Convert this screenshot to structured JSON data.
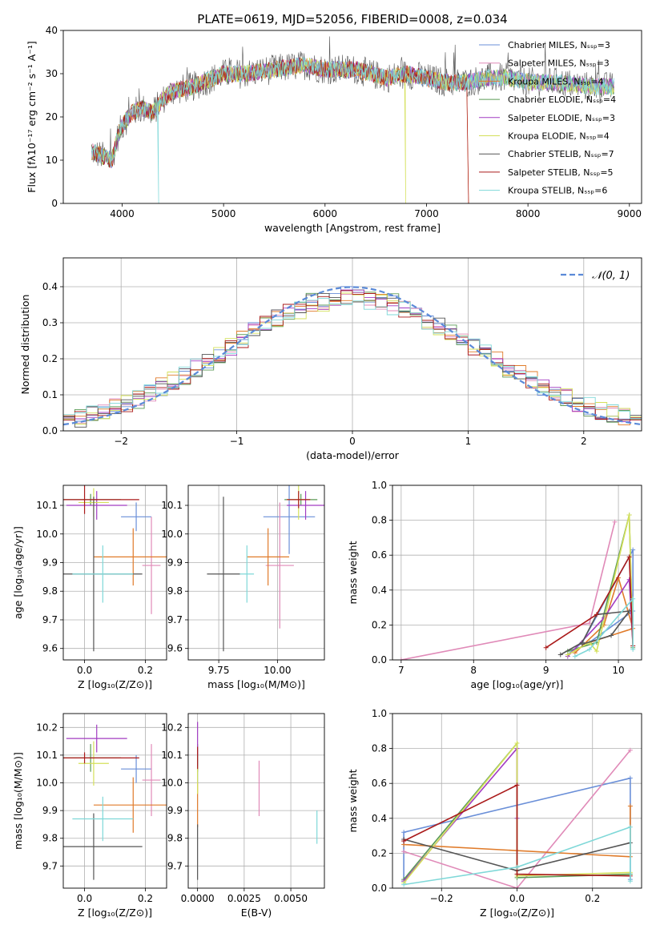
{
  "colors": [
    "#6a8fd8",
    "#e08ab8",
    "#e07b2a",
    "#5a9a55",
    "#a23cc2",
    "#d4e05a",
    "#555555",
    "#aa1a1a",
    "#7fd8d8"
  ],
  "chart_data": [
    {
      "id": "spectrum",
      "type": "line",
      "title": "PLATE=0619, MJD=52056, FIBERID=0008, z=0.034",
      "xlabel": "wavelength [Angstrom, rest frame]",
      "ylabel": "Flux [fλ10⁻¹⁷ erg cm⁻² s⁻¹ A⁻¹]",
      "xlim": [
        3420,
        9120
      ],
      "ylim": [
        0,
        40
      ],
      "xticks": [
        4000,
        5000,
        6000,
        7000,
        8000,
        9000
      ],
      "yticks": [
        0,
        10,
        20,
        30,
        40
      ],
      "legend_position": "top-right",
      "legend": [
        "Chabrier MILES, Nₛₛₚ=3",
        "Salpeter MILES, Nₛₛₚ=3",
        "Kroupa MILES, Nₛₛₚ=4",
        "Chabrier ELODIE, Nₛₛₚ=4",
        "Salpeter ELODIE, Nₛₛₚ=3",
        "Kroupa ELODIE, Nₛₛₚ=4",
        "Chabrier STELIB, Nₛₛₚ=7",
        "Salpeter STELIB, Nₛₛₚ=5",
        "Kroupa STELIB, Nₛₛₚ=6"
      ],
      "continuum": [
        [
          3700,
          12
        ],
        [
          3800,
          11
        ],
        [
          3900,
          10
        ],
        [
          3950,
          15
        ],
        [
          4000,
          18
        ],
        [
          4100,
          21
        ],
        [
          4200,
          22
        ],
        [
          4300,
          21
        ],
        [
          4400,
          24
        ],
        [
          4500,
          26
        ],
        [
          4700,
          27
        ],
        [
          4900,
          29
        ],
        [
          5000,
          30
        ],
        [
          5200,
          30
        ],
        [
          5500,
          31
        ],
        [
          5800,
          32
        ],
        [
          6000,
          31
        ],
        [
          6300,
          31
        ],
        [
          6600,
          29
        ],
        [
          6800,
          30
        ],
        [
          7000,
          29
        ],
        [
          7200,
          28
        ],
        [
          7400,
          28
        ],
        [
          7600,
          29
        ],
        [
          7800,
          29
        ],
        [
          8000,
          28
        ],
        [
          8300,
          28
        ],
        [
          8600,
          27
        ],
        [
          8850,
          27
        ]
      ]
    },
    {
      "id": "residuals",
      "type": "histogram",
      "xlabel": "(data-model)/error",
      "ylabel": "Normed distribution",
      "xlim": [
        -2.5,
        2.5
      ],
      "ylim": [
        0,
        0.48
      ],
      "xticks": [
        -2,
        -1,
        0,
        1,
        2
      ],
      "yticks": [
        0.0,
        0.1,
        0.2,
        0.3,
        0.4
      ],
      "legend": "𝒩(0, 1)",
      "legend_position": "top-right"
    },
    {
      "id": "age-vs-Z",
      "type": "errorbar",
      "xlabel": "Z [log₁₀(Z/Z⊙)]",
      "ylabel": "age  [log₁₀(age/yr)]",
      "xlim": [
        -0.07,
        0.27
      ],
      "ylim": [
        9.56,
        10.17
      ],
      "xticks": [
        0.0,
        0.2
      ],
      "yticks": [
        9.6,
        9.7,
        9.8,
        9.9,
        10.0,
        10.1
      ],
      "points": [
        [
          0.17,
          10.06,
          0.05,
          0.05
        ],
        [
          0.22,
          9.89,
          0.03,
          0.17
        ],
        [
          0.16,
          9.92,
          0.13,
          0.1
        ],
        [
          0.02,
          10.12,
          0.1,
          0.02
        ],
        [
          0.04,
          10.1,
          0.1,
          0.05
        ],
        [
          0.03,
          10.11,
          0.05,
          0.05
        ],
        [
          0.03,
          9.86,
          0.16,
          0.27
        ],
        [
          0.0,
          10.12,
          0.18,
          0.05
        ],
        [
          0.06,
          9.86,
          0.1,
          0.1
        ]
      ]
    },
    {
      "id": "age-vs-mass",
      "type": "errorbar",
      "xlabel": "mass [log₁₀(M/M⊙)]",
      "ylabel": "",
      "xlim": [
        9.62,
        10.2
      ],
      "ylim": [
        9.56,
        10.17
      ],
      "xticks": [
        9.75,
        10.0
      ],
      "yticks": [
        9.6,
        9.7,
        9.8,
        9.9,
        10.0,
        10.1
      ],
      "points": [
        [
          10.05,
          10.06,
          0.11,
          0.13
        ],
        [
          10.01,
          9.89,
          0.06,
          0.22
        ],
        [
          9.96,
          9.92,
          0.09,
          0.1
        ],
        [
          10.1,
          10.12,
          0.07,
          0.02
        ],
        [
          10.12,
          10.1,
          0.08,
          0.05
        ],
        [
          10.09,
          10.12,
          0.05,
          0.07
        ],
        [
          9.77,
          9.86,
          0.07,
          0.27
        ],
        [
          10.09,
          10.12,
          0.05,
          0.03
        ],
        [
          9.87,
          9.86,
          0.03,
          0.1
        ]
      ]
    },
    {
      "id": "mass-weight-vs-age",
      "type": "line",
      "xlabel": "age  [log₁₀(age/yr)]",
      "ylabel": "mass weight",
      "xlim": [
        6.88,
        10.32
      ],
      "ylim": [
        0,
        1
      ],
      "xticks": [
        7,
        8,
        9,
        10
      ],
      "yticks": [
        0.0,
        0.2,
        0.4,
        0.6,
        0.8,
        1.0
      ],
      "series": [
        [
          [
            9.3,
            0.03
          ],
          [
            9.5,
            0.1
          ],
          [
            10.2,
            0.63
          ],
          [
            10.2,
            0.28
          ],
          [
            9.6,
            0.1
          ]
        ],
        [
          [
            7.0,
            0.0
          ],
          [
            9.6,
            0.21
          ],
          [
            9.95,
            0.79
          ]
        ],
        [
          [
            9.4,
            0.04
          ],
          [
            9.8,
            0.2
          ],
          [
            10.0,
            0.47
          ],
          [
            10.2,
            0.18
          ],
          [
            9.6,
            0.1
          ]
        ],
        [
          [
            9.3,
            0.05
          ],
          [
            9.7,
            0.1
          ],
          [
            10.15,
            0.83
          ],
          [
            10.2,
            0.07
          ]
        ],
        [
          [
            9.3,
            0.02
          ],
          [
            9.8,
            0.24
          ],
          [
            10.15,
            0.46
          ],
          [
            10.2,
            0.08
          ]
        ],
        [
          [
            9.3,
            0.03
          ],
          [
            9.6,
            0.1
          ],
          [
            9.7,
            0.05
          ],
          [
            10.15,
            0.83
          ],
          [
            10.2,
            0.08
          ]
        ],
        [
          [
            9.2,
            0.03
          ],
          [
            9.5,
            0.1
          ],
          [
            9.7,
            0.26
          ],
          [
            10.15,
            0.28
          ],
          [
            9.9,
            0.14
          ],
          [
            9.5,
            0.09
          ]
        ],
        [
          [
            9.0,
            0.07
          ],
          [
            9.7,
            0.26
          ],
          [
            10.15,
            0.59
          ],
          [
            10.2,
            0.08
          ]
        ],
        [
          [
            9.4,
            0.02
          ],
          [
            9.6,
            0.06
          ],
          [
            10.2,
            0.35
          ],
          [
            10.2,
            0.06
          ]
        ]
      ]
    },
    {
      "id": "mass-vs-Z",
      "type": "errorbar",
      "xlabel": "Z [log₁₀(Z/Z⊙)]",
      "ylabel": "mass [log₁₀(M/M⊙)]",
      "xlim": [
        -0.07,
        0.27
      ],
      "ylim": [
        9.62,
        10.25
      ],
      "xticks": [
        0.0,
        0.2
      ],
      "yticks": [
        9.7,
        9.8,
        9.9,
        10.0,
        10.1,
        10.2
      ],
      "points": [
        [
          0.17,
          10.05,
          0.05,
          0.05
        ],
        [
          0.22,
          10.01,
          0.03,
          0.13
        ],
        [
          0.16,
          9.92,
          0.13,
          0.1
        ],
        [
          0.02,
          10.09,
          0.1,
          0.05
        ],
        [
          0.04,
          10.16,
          0.1,
          0.05
        ],
        [
          0.03,
          10.07,
          0.05,
          0.08
        ],
        [
          0.03,
          9.77,
          0.16,
          0.12
        ],
        [
          0.0,
          10.09,
          0.18,
          0.02
        ],
        [
          0.06,
          9.87,
          0.1,
          0.08
        ]
      ]
    },
    {
      "id": "mass-vs-EBV",
      "type": "errorbar",
      "xlabel": "E(B-V)",
      "ylabel": "",
      "xlim": [
        -0.0005,
        0.0068
      ],
      "ylim": [
        9.62,
        10.25
      ],
      "xticks": [
        0.0,
        0.0025,
        0.005
      ],
      "xtick_labels": [
        "0.0000",
        "0.0025",
        "0.0050"
      ],
      "yticks": [
        9.7,
        9.8,
        9.9,
        10.0,
        10.1,
        10.2
      ],
      "points": [
        [
          0.0,
          10.05,
          0,
          0.05
        ],
        [
          0.0033,
          9.98,
          0,
          0.1
        ],
        [
          0.0,
          9.92,
          0,
          0.08
        ],
        [
          0.0,
          10.09,
          0,
          0.05
        ],
        [
          0.0,
          10.16,
          0,
          0.06
        ],
        [
          0.0,
          10.01,
          0,
          0.05
        ],
        [
          0.0,
          9.75,
          0,
          0.1
        ],
        [
          0.0,
          10.09,
          0,
          0.04
        ],
        [
          0.0064,
          9.84,
          0,
          0.06
        ]
      ]
    },
    {
      "id": "mass-weight-vs-Z",
      "type": "line",
      "xlabel": "Z [log₁₀(Z/Z⊙)]",
      "ylabel": "mass weight",
      "xlim": [
        -0.33,
        0.33
      ],
      "ylim": [
        0,
        1
      ],
      "xticks": [
        -0.2,
        0.0,
        0.2
      ],
      "yticks": [
        0.0,
        0.2,
        0.4,
        0.6,
        0.8,
        1.0
      ],
      "series": [
        [
          [
            -0.3,
            0.04
          ],
          [
            -0.3,
            0.32
          ],
          [
            0.3,
            0.63
          ],
          [
            0.3,
            0.05
          ]
        ],
        [
          [
            -0.3,
            0.21
          ],
          [
            0.0,
            0.0
          ],
          [
            0.3,
            0.79
          ]
        ],
        [
          [
            -0.3,
            0.25
          ],
          [
            0.3,
            0.18
          ],
          [
            0.3,
            0.47
          ]
        ],
        [
          [
            -0.3,
            0.05
          ],
          [
            0.0,
            0.83
          ],
          [
            0.0,
            0.06
          ],
          [
            0.3,
            0.08
          ]
        ],
        [
          [
            -0.3,
            0.04
          ],
          [
            0.0,
            0.8
          ],
          [
            0.0,
            0.4
          ]
        ],
        [
          [
            -0.3,
            0.03
          ],
          [
            0.0,
            0.83
          ],
          [
            0.0,
            0.07
          ],
          [
            0.3,
            0.09
          ]
        ],
        [
          [
            -0.3,
            0.28
          ],
          [
            0.0,
            0.1
          ],
          [
            0.3,
            0.26
          ]
        ],
        [
          [
            -0.3,
            0.27
          ],
          [
            0.0,
            0.59
          ],
          [
            0.0,
            0.08
          ],
          [
            0.3,
            0.07
          ]
        ],
        [
          [
            -0.3,
            0.02
          ],
          [
            0.0,
            0.12
          ],
          [
            0.3,
            0.35
          ],
          [
            0.3,
            0.04
          ]
        ]
      ]
    }
  ]
}
